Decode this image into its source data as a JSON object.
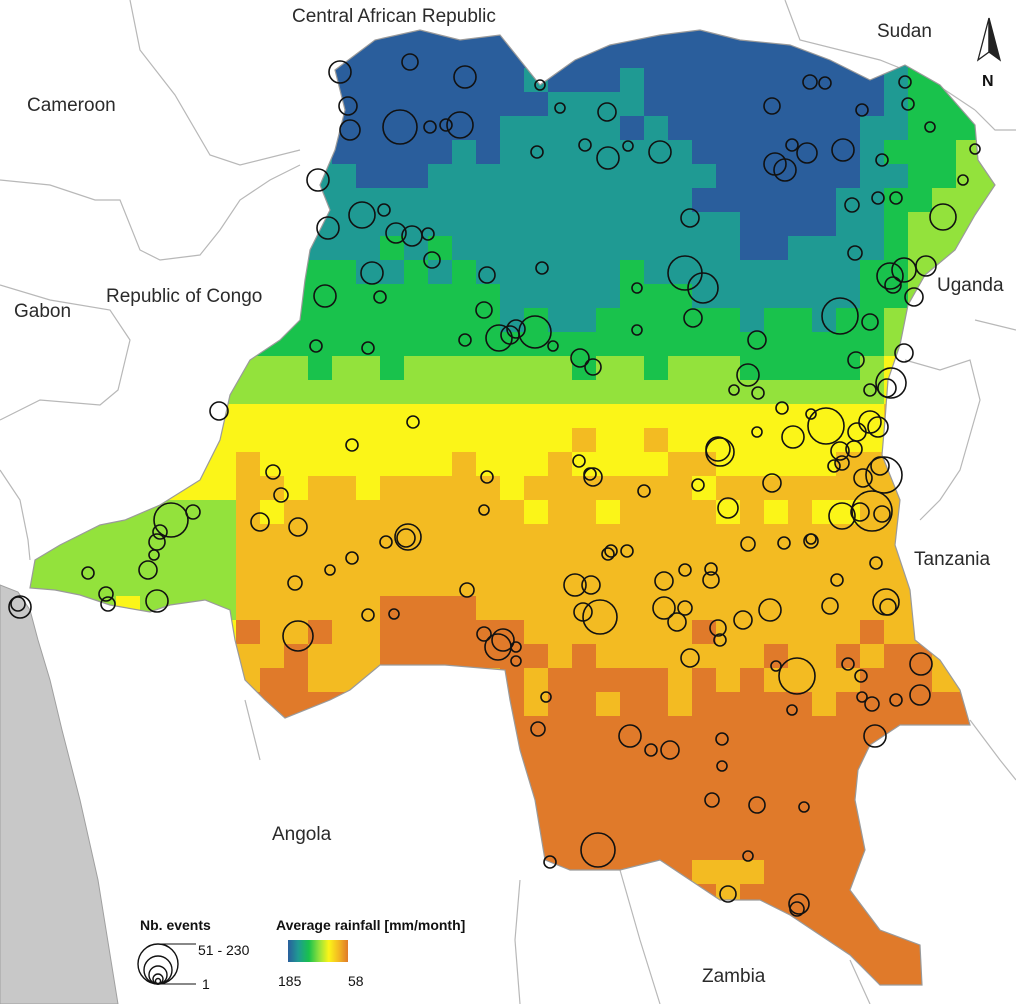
{
  "map": {
    "country_labels": [
      {
        "id": "car",
        "text": "Central African Republic"
      },
      {
        "id": "sudan",
        "text": "Sudan"
      },
      {
        "id": "cameroon",
        "text": "Cameroon"
      },
      {
        "id": "gabon",
        "text": "Gabon"
      },
      {
        "id": "roc",
        "text": "Republic of Congo"
      },
      {
        "id": "uganda",
        "text": "Uganda"
      },
      {
        "id": "tanzania",
        "text": "Tanzania"
      },
      {
        "id": "angola",
        "text": "Angola"
      },
      {
        "id": "zambia",
        "text": "Zambia"
      }
    ],
    "north_arrow_label": "N",
    "colors": {
      "ocean": "#c8c8c8",
      "land_other": "#ffffff",
      "border": "#b8b8b8",
      "ramp": [
        "#2a5e9c",
        "#1f9a93",
        "#19c24c",
        "#93e23c",
        "#fbf518",
        "#f3bb22",
        "#e07a2a"
      ],
      "event_circle": "#111111"
    }
  },
  "legend": {
    "events": {
      "title": "Nb. events",
      "max_label": "51 - 230",
      "min_label": "1"
    },
    "rainfall": {
      "title": "Average rainfall [mm/month]",
      "high_label": "185",
      "low_label": "58"
    }
  }
}
